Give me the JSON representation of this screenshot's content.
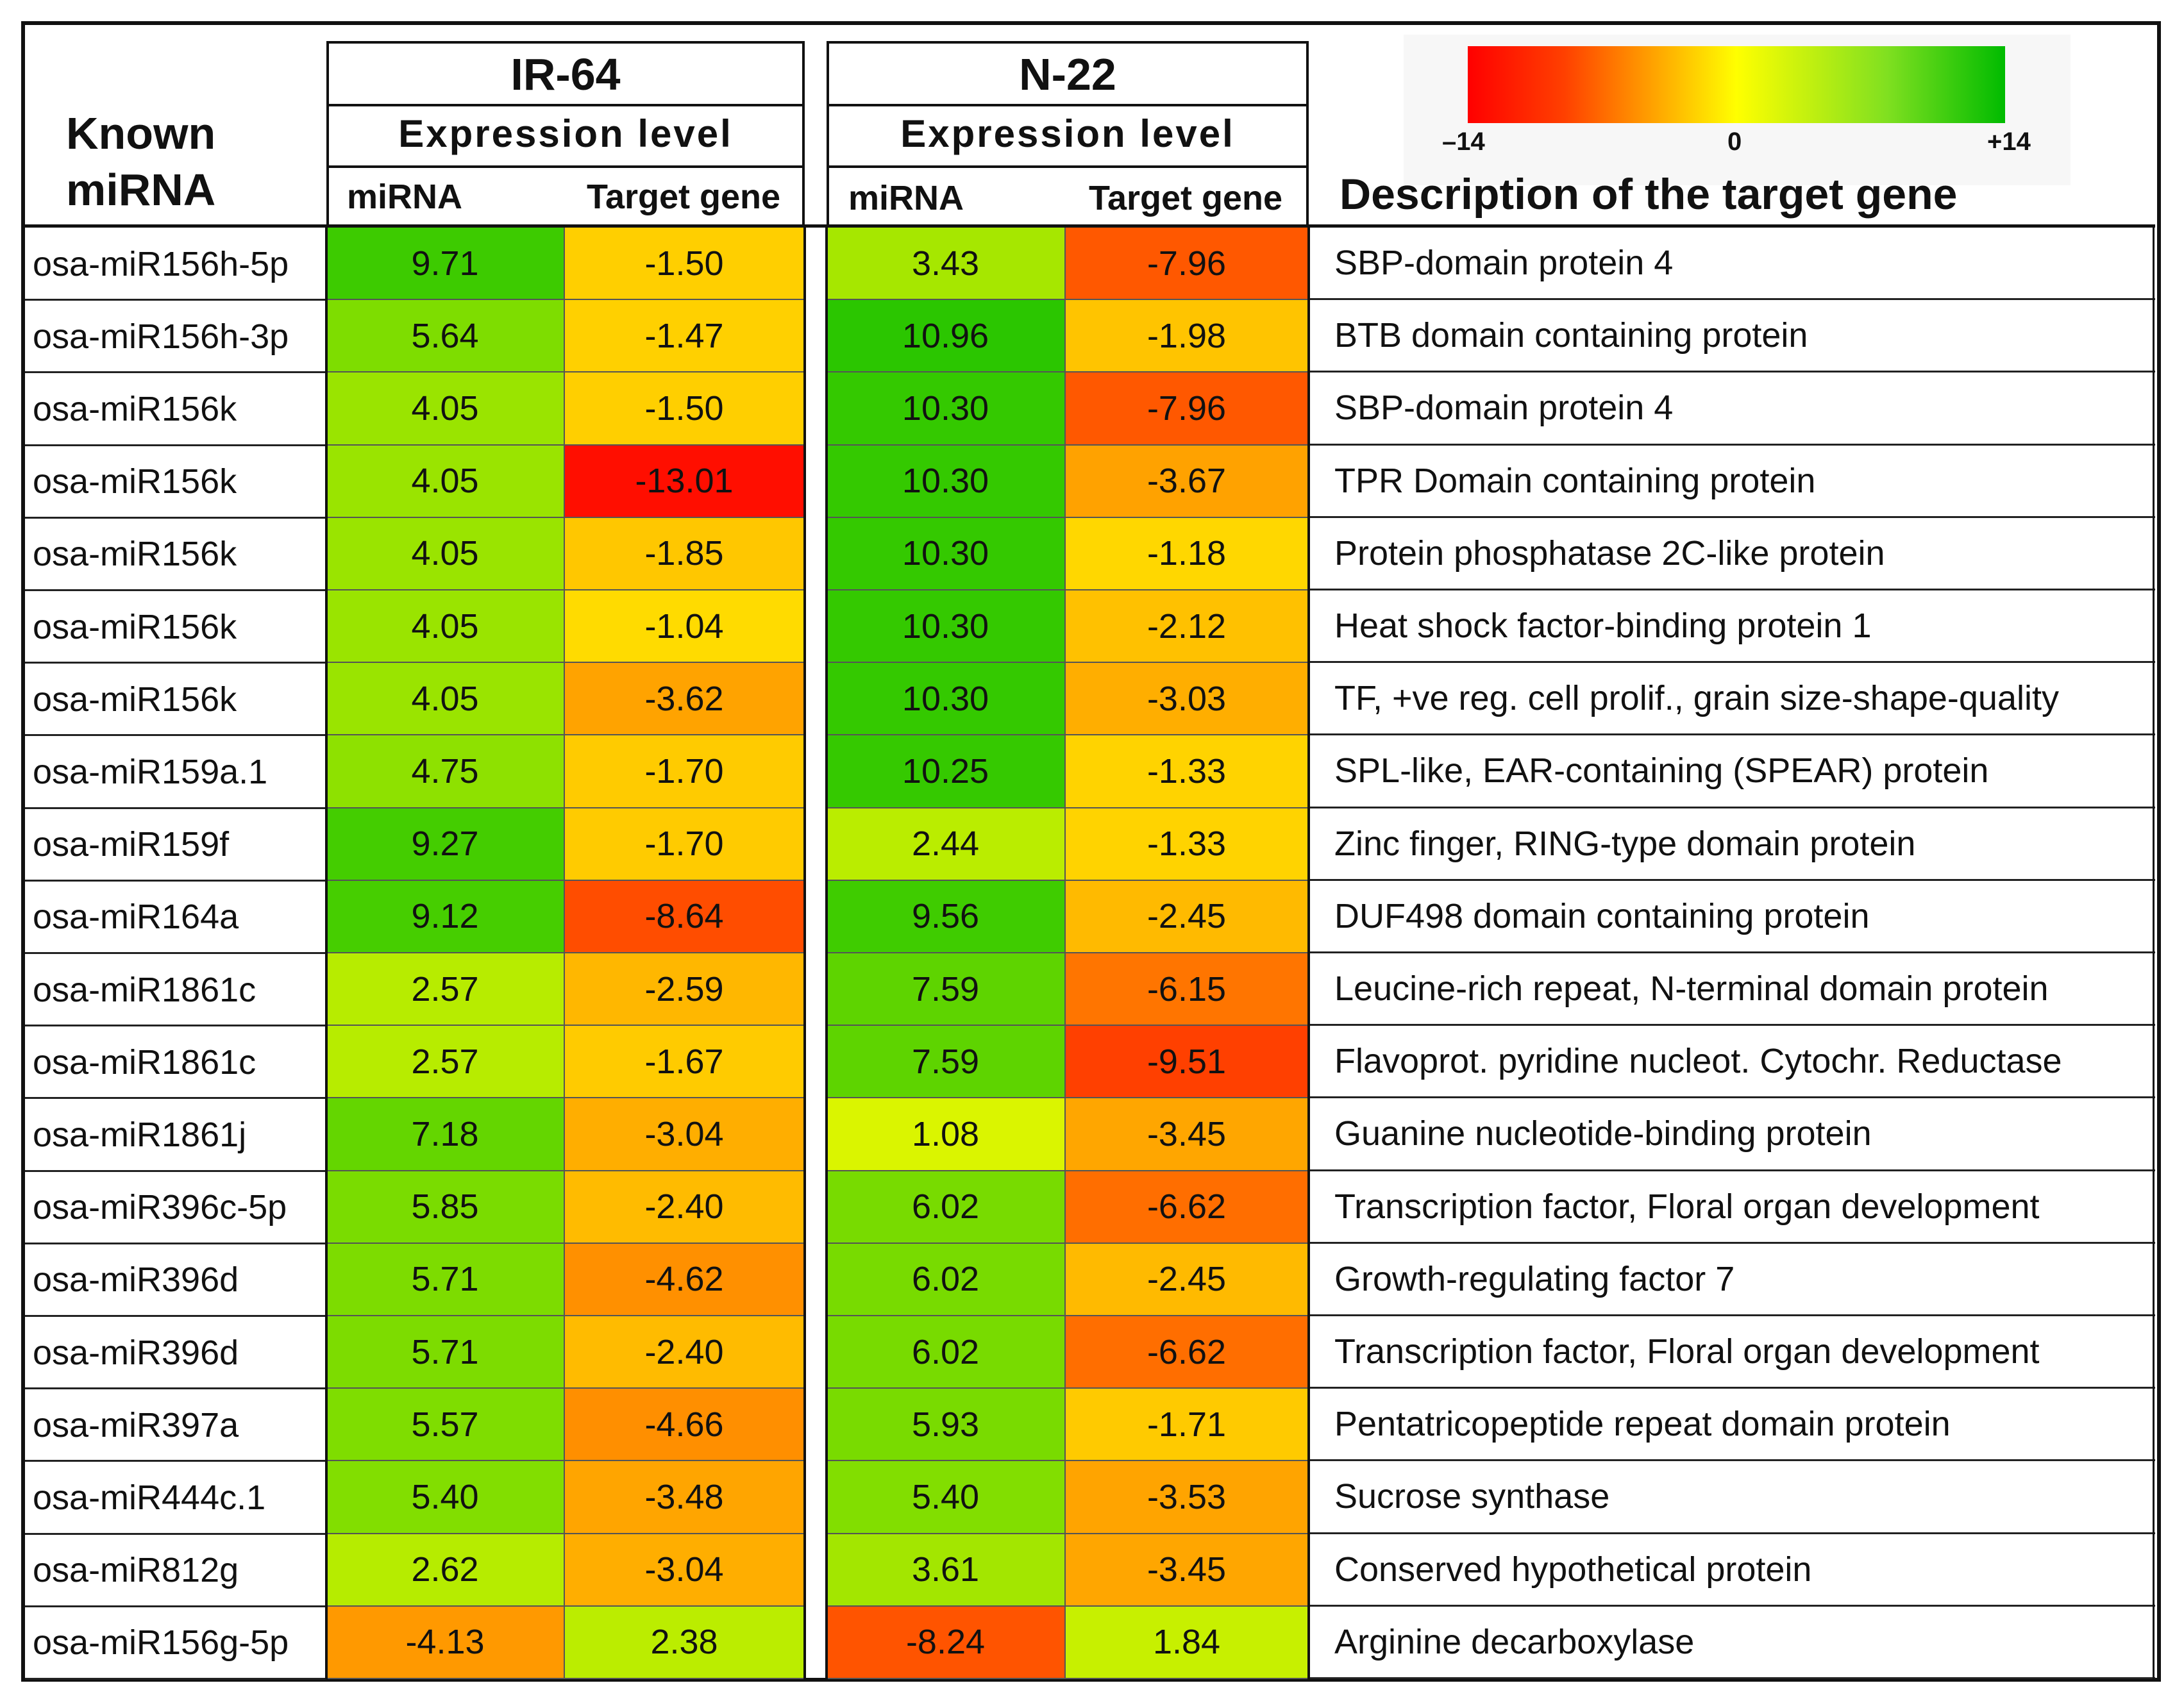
{
  "chart_data": {
    "type": "heatmap",
    "row_header": "Known miRNA",
    "description_header": "Description of the target gene",
    "groups": [
      {
        "name": "IR-64",
        "subtitle": "Expression level",
        "columns": [
          "miRNA",
          "Target gene"
        ]
      },
      {
        "name": "N-22",
        "subtitle": "Expression level",
        "columns": [
          "miRNA",
          "Target gene"
        ]
      }
    ],
    "color_scale": {
      "min": -14,
      "mid": 0,
      "max": 14,
      "min_label": "–14",
      "mid_label": "0",
      "max_label": "+14",
      "colors": [
        "#ff0000",
        "#ffff00",
        "#00bb00"
      ]
    },
    "rows": [
      {
        "mirna": "osa-miR156h-5p",
        "ir64_mirna": "9.71",
        "ir64_target": "-1.50",
        "n22_mirna": "3.43",
        "n22_target": "-7.96",
        "description": "SBP-domain protein 4"
      },
      {
        "mirna": "osa-miR156h-3p",
        "ir64_mirna": "5.64",
        "ir64_target": "-1.47",
        "n22_mirna": "10.96",
        "n22_target": "-1.98",
        "description": "BTB domain containing protein"
      },
      {
        "mirna": "osa-miR156k",
        "ir64_mirna": "4.05",
        "ir64_target": "-1.50",
        "n22_mirna": "10.30",
        "n22_target": "-7.96",
        "description": "SBP-domain protein 4"
      },
      {
        "mirna": "osa-miR156k",
        "ir64_mirna": "4.05",
        "ir64_target": "-13.01",
        "n22_mirna": "10.30",
        "n22_target": "-3.67",
        "description": "TPR Domain containing protein"
      },
      {
        "mirna": "osa-miR156k",
        "ir64_mirna": "4.05",
        "ir64_target": "-1.85",
        "n22_mirna": "10.30",
        "n22_target": "-1.18",
        "description": "Protein phosphatase 2C-like protein"
      },
      {
        "mirna": "osa-miR156k",
        "ir64_mirna": "4.05",
        "ir64_target": "-1.04",
        "n22_mirna": "10.30",
        "n22_target": "-2.12",
        "description": "Heat shock factor-binding protein 1"
      },
      {
        "mirna": "osa-miR156k",
        "ir64_mirna": "4.05",
        "ir64_target": "-3.62",
        "n22_mirna": "10.30",
        "n22_target": "-3.03",
        "description": "TF, +ve reg. cell prolif., grain size-shape-quality"
      },
      {
        "mirna": "osa-miR159a.1",
        "ir64_mirna": "4.75",
        "ir64_target": "-1.70",
        "n22_mirna": "10.25",
        "n22_target": "-1.33",
        "description": "SPL-like, EAR-containing (SPEAR) protein"
      },
      {
        "mirna": "osa-miR159f",
        "ir64_mirna": "9.27",
        "ir64_target": "-1.70",
        "n22_mirna": "2.44",
        "n22_target": "-1.33",
        "description": "Zinc finger, RING-type domain protein"
      },
      {
        "mirna": "osa-miR164a",
        "ir64_mirna": "9.12",
        "ir64_target": "-8.64",
        "n22_mirna": "9.56",
        "n22_target": "-2.45",
        "description": "DUF498 domain containing protein"
      },
      {
        "mirna": "osa-miR1861c",
        "ir64_mirna": "2.57",
        "ir64_target": "-2.59",
        "n22_mirna": "7.59",
        "n22_target": "-6.15",
        "description": "Leucine-rich repeat, N-terminal domain protein"
      },
      {
        "mirna": "osa-miR1861c",
        "ir64_mirna": "2.57",
        "ir64_target": "-1.67",
        "n22_mirna": "7.59",
        "n22_target": "-9.51",
        "description": "Flavoprot. pyridine nucleot. Cytochr. Reductase"
      },
      {
        "mirna": "osa-miR1861j",
        "ir64_mirna": "7.18",
        "ir64_target": "-3.04",
        "n22_mirna": "1.08",
        "n22_target": "-3.45",
        "description": "Guanine nucleotide-binding protein"
      },
      {
        "mirna": "osa-miR396c-5p",
        "ir64_mirna": "5.85",
        "ir64_target": "-2.40",
        "n22_mirna": "6.02",
        "n22_target": "-6.62",
        "description": "Transcription factor, Floral organ development"
      },
      {
        "mirna": "osa-miR396d",
        "ir64_mirna": "5.71",
        "ir64_target": "-4.62",
        "n22_mirna": "6.02",
        "n22_target": "-2.45",
        "description": "Growth-regulating factor 7"
      },
      {
        "mirna": "osa-miR396d",
        "ir64_mirna": "5.71",
        "ir64_target": "-2.40",
        "n22_mirna": "6.02",
        "n22_target": "-6.62",
        "description": "Transcription factor, Floral organ development"
      },
      {
        "mirna": "osa-miR397a",
        "ir64_mirna": "5.57",
        "ir64_target": "-4.66",
        "n22_mirna": "5.93",
        "n22_target": "-1.71",
        "description": "Pentatricopeptide repeat domain protein"
      },
      {
        "mirna": "osa-miR444c.1",
        "ir64_mirna": "5.40",
        "ir64_target": "-3.48",
        "n22_mirna": "5.40",
        "n22_target": "-3.53",
        "description": "Sucrose synthase"
      },
      {
        "mirna": "osa-miR812g",
        "ir64_mirna": "2.62",
        "ir64_target": "-3.04",
        "n22_mirna": "3.61",
        "n22_target": "-3.45",
        "description": "Conserved hypothetical protein"
      },
      {
        "mirna": "osa-miR156g-5p",
        "ir64_mirna": "-4.13",
        "ir64_target": "2.38",
        "n22_mirna": "-8.24",
        "n22_target": "1.84",
        "description": "Arginine decarboxylase"
      }
    ]
  }
}
